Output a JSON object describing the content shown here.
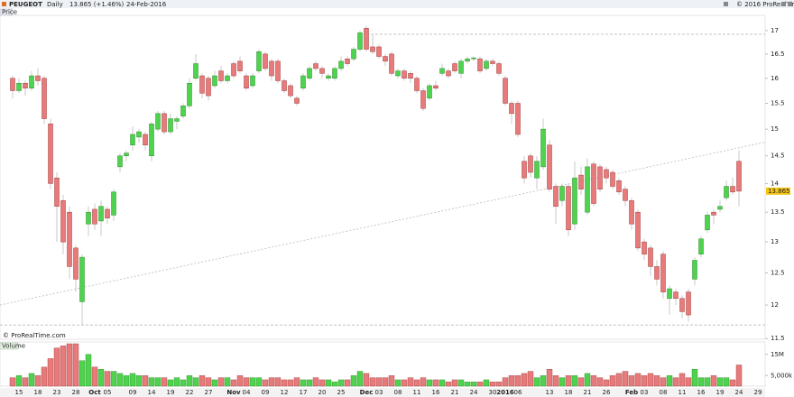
{
  "chart_data": {
    "type": "candlestick",
    "symbol": "PEUGEOT",
    "period": "Daily",
    "last": "13.865 (+1.46%)",
    "date": "24-Feb-2016",
    "site": "© 2016 ProRealTime.com",
    "panel_label": "Price",
    "credit": "© ProRealTime.com",
    "log_scale": true,
    "up_color": "#4fd34f",
    "down_color": "#e77b7b",
    "ylim": [
      11.49,
      17.33
    ],
    "yticks": [
      11.5,
      12,
      12.5,
      13,
      13.5,
      14,
      14.5,
      15,
      15.5,
      16,
      16.5,
      17
    ],
    "last_marker": {
      "value": 13.865,
      "label": "13.865"
    },
    "reference_lines": [
      {
        "value": 16.92,
        "start": 56
      },
      {
        "value": 11.7,
        "start": -2
      }
    ],
    "trend_line": {
      "x": [
        -2,
        119
      ],
      "y": [
        12.0,
        14.75
      ]
    },
    "categories": [
      null,
      "15",
      null,
      null,
      "18",
      null,
      null,
      "23",
      null,
      null,
      "28",
      null,
      null,
      "Oct",
      null,
      "05",
      null,
      null,
      null,
      "09",
      null,
      null,
      "14",
      null,
      null,
      "19",
      null,
      null,
      "22",
      null,
      null,
      "27",
      null,
      null,
      null,
      "Nov",
      null,
      "04",
      null,
      null,
      "09",
      null,
      null,
      "12",
      null,
      null,
      "17",
      null,
      null,
      "20",
      null,
      null,
      "25",
      null,
      null,
      null,
      "Dec",
      null,
      "03",
      null,
      null,
      "08",
      null,
      null,
      "11",
      null,
      null,
      "16",
      null,
      null,
      "21",
      null,
      null,
      "24",
      null,
      null,
      "30",
      null,
      "2016",
      null,
      "06",
      null,
      null,
      null,
      null,
      "13",
      null,
      null,
      "18",
      null,
      null,
      "21",
      null,
      null,
      "26",
      null,
      null,
      null,
      "Feb",
      null,
      "03",
      null,
      null,
      "08",
      null,
      null,
      "11",
      null,
      null,
      "16",
      null,
      null,
      "19",
      null,
      null,
      "24",
      null,
      null,
      "29"
    ],
    "open": [
      16.0,
      15.75,
      15.9,
      15.8,
      16.05,
      16.0,
      15.1,
      14.1,
      13.7,
      13.5,
      12.9,
      12.05,
      13.3,
      13.55,
      13.35,
      13.55,
      13.45,
      14.3,
      14.5,
      14.7,
      14.85,
      14.9,
      14.5,
      15.0,
      15.3,
      14.95,
      15.15,
      15.25,
      15.45,
      16.0,
      16.05,
      16.0,
      15.85,
      16.15,
      15.95,
      16.3,
      16.35,
      16.05,
      15.85,
      16.15,
      16.5,
      16.35,
      16.35,
      15.95,
      15.85,
      15.6,
      15.8,
      16.0,
      16.3,
      16.2,
      16.0,
      16.0,
      16.2,
      16.4,
      16.4,
      16.6,
      17.05,
      16.65,
      16.65,
      16.45,
      16.5,
      16.05,
      16.15,
      16.1,
      16.0,
      15.75,
      15.6,
      15.85,
      16.1,
      16.15,
      16.3,
      16.1,
      16.35,
      16.4,
      16.4,
      16.2,
      16.35,
      16.3,
      16.0,
      15.5,
      15.5,
      14.4,
      14.5,
      14.1,
      14.3,
      14.7,
      13.95,
      13.7,
      13.95,
      13.3,
      14.15,
      13.5,
      14.35,
      14.3,
      14.25,
      14.2,
      14.05,
      13.9,
      13.7,
      13.5,
      13.0,
      12.9,
      12.6,
      12.8,
      12.1,
      12.2,
      12.1,
      12.2,
      12.4,
      12.8,
      13.2,
      13.5,
      13.55,
      13.75,
      13.95,
      14.4,
      null,
      null,
      null
    ],
    "high": [
      16.05,
      16.0,
      15.95,
      16.15,
      16.2,
      16.05,
      15.2,
      14.2,
      13.8,
      13.6,
      12.95,
      12.8,
      13.6,
      13.65,
      13.7,
      13.6,
      13.9,
      14.55,
      14.6,
      15.05,
      15.0,
      14.95,
      15.15,
      15.35,
      15.35,
      15.3,
      15.25,
      15.5,
      16.0,
      16.5,
      16.1,
      16.05,
      16.15,
      16.25,
      16.1,
      16.35,
      16.45,
      16.1,
      16.1,
      16.6,
      16.55,
      16.4,
      16.4,
      16.0,
      15.9,
      15.65,
      16.1,
      16.25,
      16.35,
      16.25,
      16.1,
      16.25,
      16.45,
      16.45,
      16.65,
      17.0,
      17.1,
      16.9,
      16.7,
      16.5,
      16.55,
      16.2,
      16.2,
      16.15,
      16.05,
      15.8,
      15.9,
      15.95,
      16.3,
      16.2,
      16.35,
      16.4,
      16.45,
      16.45,
      16.45,
      16.4,
      16.4,
      16.35,
      16.05,
      15.55,
      15.55,
      14.5,
      14.55,
      14.5,
      15.2,
      14.8,
      14.0,
      14.0,
      14.0,
      14.4,
      14.3,
      14.45,
      14.4,
      14.35,
      14.3,
      14.25,
      14.1,
      13.95,
      13.75,
      13.55,
      13.05,
      12.95,
      12.7,
      12.85,
      12.3,
      12.25,
      12.15,
      12.25,
      12.75,
      13.1,
      13.5,
      13.55,
      13.7,
      14.05,
      14.1,
      14.6,
      null,
      null,
      null
    ],
    "low": [
      15.6,
      15.7,
      15.65,
      15.75,
      15.85,
      15.1,
      13.9,
      13.0,
      12.8,
      12.4,
      12.2,
      11.7,
      13.1,
      13.2,
      13.1,
      13.3,
      13.35,
      14.2,
      14.4,
      14.6,
      14.75,
      14.6,
      14.4,
      14.95,
      14.9,
      14.9,
      15.0,
      15.2,
      15.4,
      15.95,
      15.6,
      15.55,
      15.8,
      15.9,
      15.9,
      16.0,
      16.1,
      15.75,
      15.8,
      16.1,
      16.15,
      15.95,
      15.9,
      15.7,
      15.6,
      15.45,
      15.75,
      15.95,
      16.15,
      16.0,
      15.95,
      15.95,
      16.15,
      16.25,
      16.35,
      16.55,
      16.55,
      16.5,
      16.4,
      16.25,
      16.05,
      16.0,
      15.95,
      15.9,
      15.7,
      15.35,
      15.55,
      15.75,
      16.05,
      16.0,
      16.1,
      16.0,
      16.3,
      16.35,
      16.1,
      16.15,
      16.25,
      16.05,
      15.45,
      15.1,
      14.85,
      14.0,
      14.1,
      13.9,
      14.25,
      13.85,
      13.3,
      13.6,
      13.1,
      13.2,
      13.8,
      13.45,
      13.6,
      13.85,
      14.0,
      13.9,
      13.8,
      13.6,
      13.2,
      12.85,
      12.7,
      12.45,
      12.3,
      12.1,
      11.85,
      12.0,
      11.8,
      11.75,
      12.3,
      12.75,
      13.15,
      13.3,
      13.5,
      13.7,
      13.8,
      13.6,
      null,
      null,
      null
    ],
    "close": [
      15.75,
      15.9,
      15.8,
      16.05,
      15.95,
      15.2,
      14.0,
      13.6,
      13.0,
      12.6,
      12.4,
      12.75,
      13.5,
      13.3,
      13.6,
      13.4,
      13.85,
      14.5,
      14.55,
      14.9,
      14.95,
      14.7,
      15.1,
      15.3,
      14.95,
      15.2,
      15.2,
      15.45,
      15.9,
      16.3,
      15.7,
      15.65,
      16.05,
      15.95,
      16.05,
      16.05,
      16.15,
      15.8,
      16.05,
      16.55,
      16.2,
      16.05,
      15.95,
      15.75,
      15.65,
      15.5,
      16.05,
      16.2,
      16.2,
      16.1,
      16.05,
      16.2,
      16.35,
      16.3,
      16.6,
      16.95,
      16.6,
      16.55,
      16.45,
      16.35,
      16.1,
      16.15,
      16.0,
      16.0,
      15.75,
      15.4,
      15.85,
      15.8,
      16.2,
      16.05,
      16.15,
      16.35,
      16.4,
      16.42,
      16.15,
      16.35,
      16.3,
      16.1,
      15.5,
      15.3,
      14.9,
      14.1,
      14.2,
      14.4,
      15.0,
      13.9,
      13.6,
      13.95,
      13.2,
      14.1,
      13.9,
      14.3,
      13.65,
      13.9,
      14.1,
      13.95,
      13.85,
      13.7,
      13.3,
      12.9,
      12.8,
      12.6,
      12.4,
      12.2,
      12.25,
      12.1,
      11.9,
      11.85,
      12.7,
      13.05,
      13.45,
      13.45,
      13.6,
      13.95,
      13.85,
      13.865,
      null,
      null,
      null
    ],
    "volume": {
      "name": "Volume",
      "ylim": [
        0,
        20
      ],
      "yticks": [
        {
          "value": 5,
          "label": "5,000k"
        },
        {
          "value": 15,
          "label": "15M"
        }
      ],
      "values": [
        4,
        5,
        4,
        6,
        5,
        9,
        13,
        18,
        19,
        20,
        20,
        12,
        15,
        9,
        8,
        7,
        7,
        6,
        5,
        6,
        5,
        5,
        4,
        4,
        4,
        3,
        4,
        3,
        5,
        4,
        5,
        4,
        3,
        4,
        4,
        3,
        5,
        4,
        4,
        4,
        3,
        4,
        4,
        3,
        3,
        4,
        3,
        3,
        4,
        3,
        3,
        2,
        3,
        3,
        5,
        7,
        6,
        4,
        4,
        4,
        5,
        3,
        3,
        4,
        3,
        4,
        3,
        3,
        3,
        2,
        3,
        3,
        2,
        2,
        2,
        3,
        2,
        2,
        4,
        5,
        5,
        6,
        7,
        4,
        5,
        8,
        5,
        4,
        5,
        5,
        4,
        6,
        5,
        4,
        3,
        5,
        6,
        7,
        5,
        6,
        5,
        6,
        5,
        4,
        5,
        4,
        6,
        4,
        8,
        4,
        4,
        5,
        4,
        4,
        3,
        10,
        null,
        null,
        null
      ]
    }
  }
}
